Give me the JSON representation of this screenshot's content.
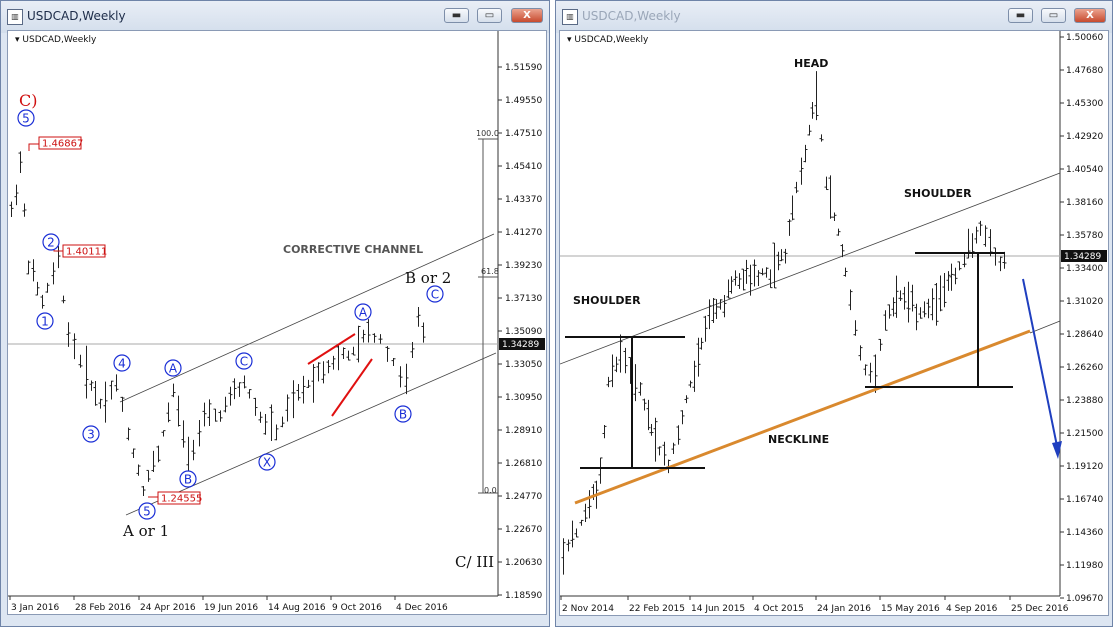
{
  "left": {
    "title": "USDCAD,Weekly",
    "symbol_label": "USDCAD,Weekly",
    "close_label": "X",
    "minimize_label": "▬",
    "maximize_label": "▭",
    "price_axis": [
      "1.51590",
      "1.49550",
      "1.47510",
      "1.45410",
      "1.43370",
      "1.41270",
      "1.39230",
      "1.37130",
      "1.35090",
      "1.33050",
      "1.30950",
      "1.28910",
      "1.26810",
      "1.24770",
      "1.22670",
      "1.20630",
      "1.18590"
    ],
    "current_price": "1.34289",
    "date_axis": [
      "3 Jan 2016",
      "28 Feb 2016",
      "24 Apr 2016",
      "19 Jun 2016",
      "14 Aug 2016",
      "9 Oct 2016",
      "4 Dec 2016"
    ],
    "fib_labels": [
      "100.0",
      "61.8",
      "0.0"
    ],
    "price_boxes": [
      "1.46867",
      "1.40111",
      "1.24555"
    ],
    "annotations": {
      "corrective_channel": "CORRECTIVE CHANNEL",
      "b_or_2": "B or 2",
      "a_or_1": "A or 1",
      "c_iii": "C/ III",
      "c_paren": "C)"
    },
    "wave_labels": [
      "5",
      "2",
      "1",
      "4",
      "3",
      "5",
      "A",
      "B",
      "C",
      "X",
      "A",
      "B",
      "C"
    ],
    "colors": {
      "wave_circle": "#1a2ed6",
      "price_box": "#cc1111",
      "trend_red": "#e01010"
    }
  },
  "right": {
    "title": "USDCAD,Weekly",
    "symbol_label": "USDCAD,Weekly",
    "close_label": "X",
    "minimize_label": "▬",
    "maximize_label": "▭",
    "price_axis": [
      "1.50060",
      "1.47680",
      "1.45300",
      "1.42920",
      "1.40540",
      "1.38160",
      "1.35780",
      "1.33400",
      "1.31020",
      "1.28640",
      "1.26260",
      "1.23880",
      "1.21500",
      "1.19120",
      "1.16740",
      "1.14360",
      "1.11980",
      "1.09670"
    ],
    "current_price": "1.34289",
    "date_axis": [
      "2 Nov 2014",
      "22 Feb 2015",
      "14 Jun 2015",
      "4 Oct 2015",
      "24 Jan 2016",
      "15 May 2016",
      "4 Sep 2016",
      "25 Dec 2016"
    ],
    "annotations": {
      "head": "HEAD",
      "shoulder_left": "SHOULDER",
      "shoulder_right": "SHOULDER",
      "neckline": "NECKLINE"
    },
    "colors": {
      "neckline": "#d9892e",
      "arrow": "#1f3fbf"
    }
  }
}
